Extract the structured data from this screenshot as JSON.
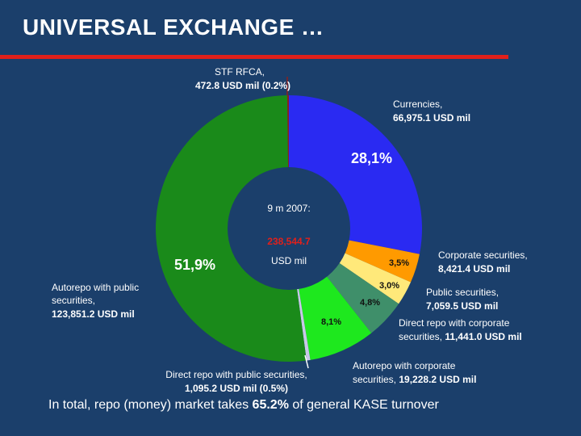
{
  "slide": {
    "title": "UNIVERSAL EXCHANGE …",
    "footer_prefix": "In total, repo (money) market takes ",
    "footer_highlight": "65.2%",
    "footer_suffix": " of general KASE turnover"
  },
  "colors": {
    "background": "#1b3f6b",
    "title_rule": "#e0201b",
    "center": "#1b3f6b"
  },
  "chart_data": {
    "type": "pie",
    "variant": "donut",
    "center_text": {
      "line1": "9 m 2007:",
      "value": "238,544.7",
      "unit": "USD mil"
    },
    "slices": [
      {
        "name": "Currencies,",
        "value_text": "66,975.1 USD mil",
        "value": 66975.1,
        "pct_label": "28,1%",
        "color": "#2a2af2"
      },
      {
        "name": "Corporate securities,",
        "value_text": "8,421.4 USD mil",
        "value": 8421.4,
        "pct_label": "3,5%",
        "color": "#ff9a00"
      },
      {
        "name": "Public securities,",
        "value_text": "7,059.5 USD mil",
        "value": 7059.5,
        "pct_label": "3,0%",
        "color": "#ffe97a"
      },
      {
        "name": "Direct repo with corporate securities,",
        "value_text": "11,441.0 USD mil",
        "value": 11441.0,
        "pct_label": "4,8%",
        "color": "#3f8f6a"
      },
      {
        "name": "Autorepo with corporate securities,",
        "value_text": "19,228.2 USD mil",
        "value": 19228.2,
        "pct_label": "8,1%",
        "color": "#1ee81e"
      },
      {
        "name": "Direct repo with public securities,",
        "value_text": "1,095.2 USD mil (0.5%)",
        "value": 1095.2,
        "pct_label": "",
        "color": "#c8c8e8"
      },
      {
        "name": "Autorepo with public securities,",
        "value_text": "123,851.2 USD mil",
        "value": 123851.2,
        "pct_label": "51,9%",
        "color": "#1a8a1a"
      },
      {
        "name": "STF RFCA,",
        "value_text": "472.8 USD mil (0.2%)",
        "value": 472.8,
        "pct_label": "",
        "color": "#8b2020"
      }
    ]
  }
}
